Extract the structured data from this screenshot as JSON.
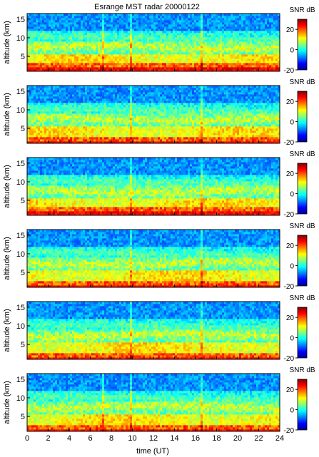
{
  "title": "Esrange MST radar 20000122",
  "colorbar": {
    "label": "SNR dB",
    "min": -20,
    "max": 30,
    "ticks": [
      20,
      0,
      -20
    ]
  },
  "chart_data": {
    "type": "heatmap",
    "title": "Esrange MST radar 20000122",
    "xlabel": "time (UT)",
    "ylabel": "altitude (km)",
    "xlim": [
      0,
      24
    ],
    "ylim": [
      1,
      16.5
    ],
    "xticks": [
      0,
      2,
      4,
      6,
      8,
      10,
      12,
      14,
      16,
      18,
      20,
      22,
      24
    ],
    "yticks": [
      5,
      10,
      15
    ],
    "colorbar_label": "SNR dB",
    "clim": [
      -20,
      30
    ],
    "colormap": "jet",
    "panels": [
      {
        "name": "",
        "strong_layer_top_km": 3.5,
        "vertical_streak_times_ut": [
          7.3,
          9.9,
          16.6
        ]
      },
      {
        "name": "",
        "strong_layer_top_km": 3.0,
        "vertical_streak_times_ut": [
          9.9,
          16.6
        ]
      },
      {
        "name": "",
        "strong_layer_top_km": 3.5,
        "vertical_streak_times_ut": [
          9.9,
          16.6
        ]
      },
      {
        "name": "",
        "strong_layer_top_km": 3.0,
        "vertical_streak_times_ut": [
          9.9,
          16.6
        ]
      },
      {
        "name": "",
        "strong_layer_top_km": 3.0,
        "vertical_streak_times_ut": [
          9.9,
          16.6
        ]
      },
      {
        "name": "",
        "strong_layer_top_km": 3.0,
        "vertical_streak_times_ut": [
          7.3,
          9.9,
          16.6
        ]
      }
    ]
  },
  "colors": {
    "jet_low": "#00008f",
    "jet_mid": "#00ffff",
    "jet_high": "#800000"
  }
}
